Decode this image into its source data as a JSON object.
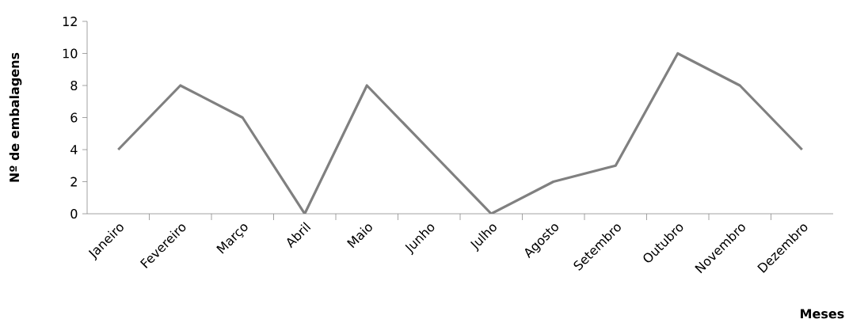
{
  "chart_data": {
    "type": "line",
    "xlabel": "Meses",
    "ylabel": "Nº de embalagens",
    "categories": [
      "Janeiro",
      "Fevereiro",
      "Março",
      "Abril",
      "Maio",
      "Junho",
      "Julho",
      "Agosto",
      "Setembro",
      "Outubro",
      "Novembro",
      "Dezembro"
    ],
    "series": [
      {
        "color": "#808080",
        "values": [
          4,
          8,
          6,
          0,
          8,
          4,
          0,
          2,
          3,
          10,
          8,
          4
        ]
      }
    ],
    "ylim": [
      0,
      12
    ],
    "yticks": [
      0,
      2,
      4,
      6,
      8,
      10,
      12
    ],
    "grid": false,
    "marker": "none",
    "line_style": "solid"
  }
}
